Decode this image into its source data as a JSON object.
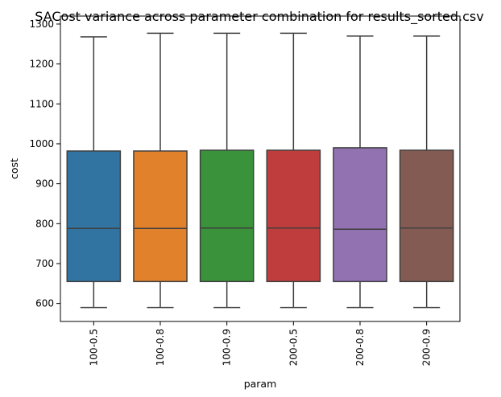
{
  "chart_data": {
    "type": "box",
    "title": "SACost variance across parameter combination for results_sorted.csv",
    "xlabel": "param",
    "ylabel": "cost",
    "ylim": [
      555,
      1320
    ],
    "yticks": [
      600,
      700,
      800,
      900,
      1000,
      1100,
      1200,
      1300
    ],
    "categories": [
      "100-0.5",
      "100-0.8",
      "100-0.9",
      "200-0.5",
      "200-0.8",
      "200-0.9"
    ],
    "boxes": [
      {
        "min": 590,
        "q1": 655,
        "median": 788,
        "q3": 982,
        "max": 1268,
        "color": "#3274a1"
      },
      {
        "min": 590,
        "q1": 655,
        "median": 788,
        "q3": 982,
        "max": 1277,
        "color": "#e1812c"
      },
      {
        "min": 590,
        "q1": 655,
        "median": 789,
        "q3": 984,
        "max": 1277,
        "color": "#3a923a"
      },
      {
        "min": 590,
        "q1": 655,
        "median": 789,
        "q3": 984,
        "max": 1277,
        "color": "#c03d3e"
      },
      {
        "min": 590,
        "q1": 655,
        "median": 786,
        "q3": 990,
        "max": 1270,
        "color": "#9372b2"
      },
      {
        "min": 590,
        "q1": 655,
        "median": 789,
        "q3": 984,
        "max": 1270,
        "color": "#845b53"
      }
    ],
    "grid": false,
    "legend": "none"
  }
}
